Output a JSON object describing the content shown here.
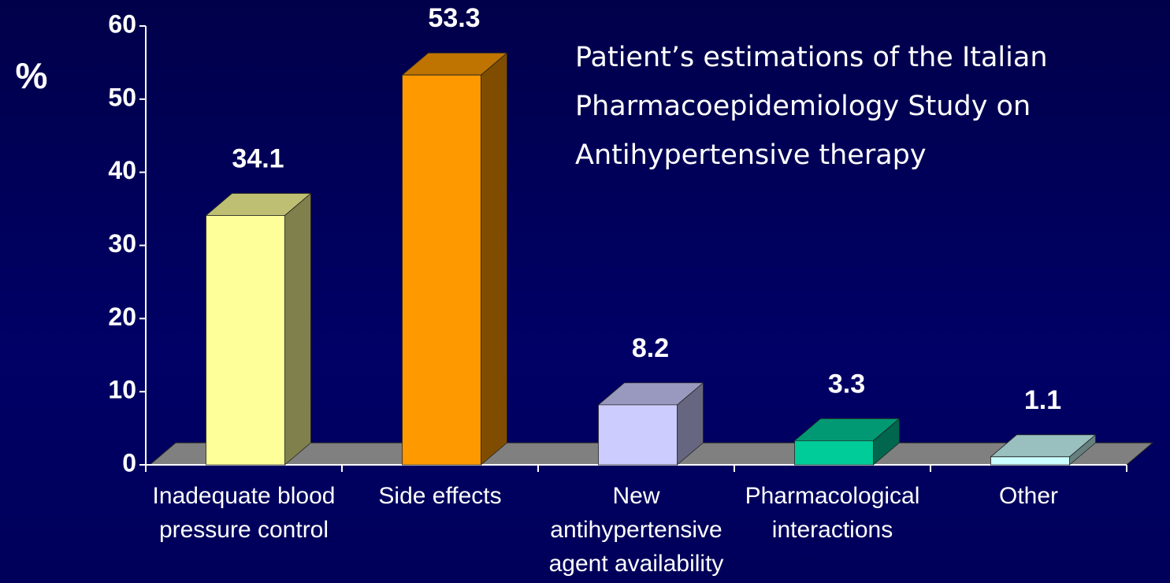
{
  "chart_data": {
    "type": "bar3d",
    "title": "Patient’s estimations of the Italian Pharmacoepidemiology Study on Antihypertensive therapy",
    "ylabel": "%",
    "categories": [
      "Inadequate blood pressure control",
      "Side effects",
      "New antihypertensive agent availability",
      "Pharmacological interactions",
      "Other"
    ],
    "values": [
      34.1,
      53.3,
      8.2,
      3.3,
      1.1
    ],
    "colors": [
      "#ffff99",
      "#ff9900",
      "#ccccff",
      "#00cc99",
      "#ccffff"
    ],
    "ylim": [
      0,
      60
    ],
    "yticks": [
      0,
      10,
      20,
      30,
      40,
      50,
      60
    ]
  }
}
